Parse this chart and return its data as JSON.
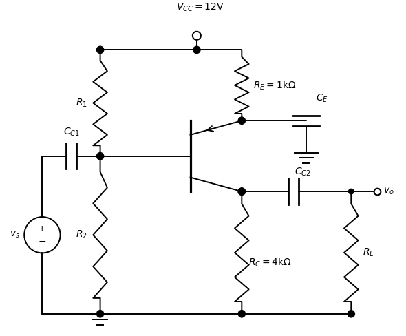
{
  "bg_color": "#ffffff",
  "line_color": "#000000",
  "dot_color": "#000000",
  "fig_width": 5.9,
  "fig_height": 4.88,
  "labels": {
    "VCC": "$V_{CC} = 12\\mathrm{V}$",
    "RE": "$R_E = 1\\mathrm{k\\Omega}$",
    "R1": "$R_1$",
    "R2": "$R_2$",
    "RC": "$R_C = 4\\mathrm{k\\Omega}$",
    "RL": "$R_L$",
    "CC1": "$C_{C1}$",
    "CC2": "$C_{C2}$",
    "CE": "$C_E$",
    "vs": "$v_s$",
    "vo": "$v_o$"
  }
}
